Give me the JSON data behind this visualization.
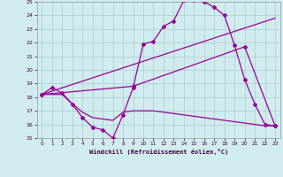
{
  "bg_color": "#d0ecee",
  "line_color": "#990099",
  "grid_color": "#aacccc",
  "xlabel": "Windchill (Refroidissement éolien,°C)",
  "xlim": [
    -0.5,
    23.5
  ],
  "ylim": [
    15,
    25
  ],
  "yticks": [
    15,
    16,
    17,
    18,
    19,
    20,
    21,
    22,
    23,
    24,
    25
  ],
  "xticks": [
    0,
    1,
    2,
    3,
    4,
    5,
    6,
    7,
    8,
    9,
    10,
    11,
    12,
    13,
    14,
    15,
    16,
    17,
    18,
    19,
    20,
    21,
    22,
    23
  ],
  "line1_x": [
    0,
    1,
    2,
    3,
    4,
    5,
    6,
    7,
    8,
    9,
    10,
    11,
    12,
    13,
    14,
    15,
    16,
    17,
    18,
    19,
    20,
    21,
    22,
    23
  ],
  "line1_y": [
    18.2,
    18.7,
    18.3,
    17.5,
    16.5,
    15.8,
    15.6,
    15.0,
    16.7,
    18.7,
    21.9,
    22.1,
    23.2,
    23.6,
    25.1,
    25.1,
    25.0,
    24.6,
    24.0,
    21.8,
    19.3,
    17.5,
    16.0,
    15.9
  ],
  "line2_x": [
    0,
    23
  ],
  "line2_y": [
    18.2,
    23.8
  ],
  "line3_x": [
    0,
    1,
    2,
    3,
    4,
    5,
    6,
    7,
    8,
    9,
    10,
    11,
    12,
    13,
    14,
    15,
    16,
    17,
    18,
    19,
    20,
    21,
    22,
    23
  ],
  "line3_y": [
    18.2,
    18.2,
    18.2,
    17.5,
    16.9,
    16.5,
    16.4,
    16.3,
    16.9,
    17.0,
    17.0,
    17.0,
    16.9,
    16.8,
    16.7,
    16.6,
    16.5,
    16.4,
    16.3,
    16.2,
    16.1,
    16.0,
    15.9,
    15.9
  ],
  "line4_x": [
    0,
    9,
    20,
    23
  ],
  "line4_y": [
    18.2,
    18.8,
    21.7,
    15.9
  ],
  "markersize": 2.0,
  "linewidth": 0.9
}
